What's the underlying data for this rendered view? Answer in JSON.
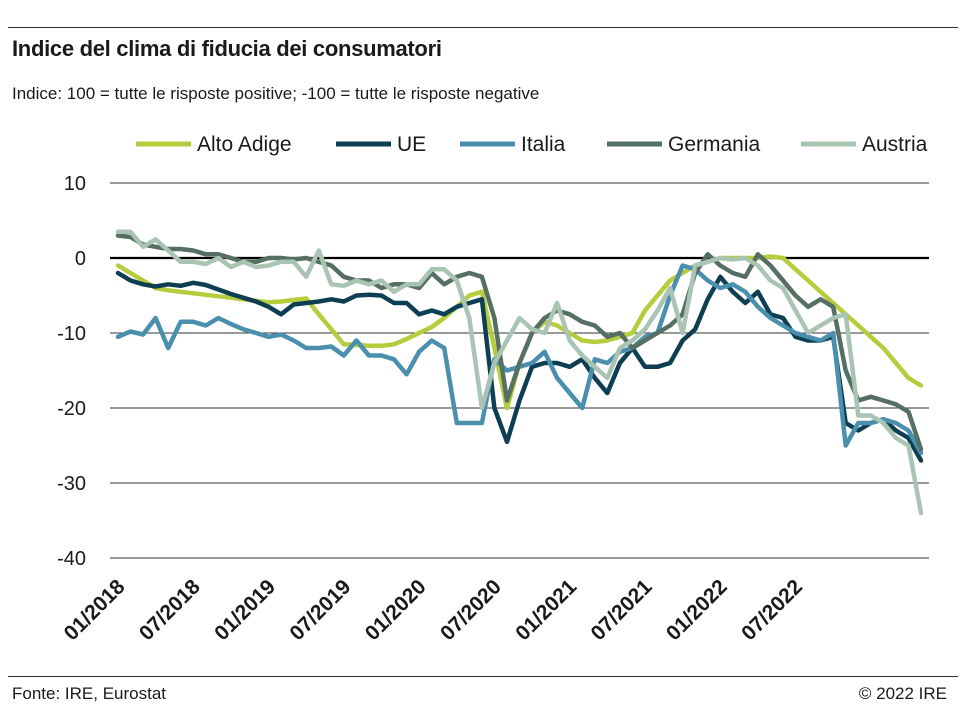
{
  "header": {
    "title": "Indice del clima di fiducia dei consumatori",
    "subtitle": "Indice: 100 = tutte le risposte positive; -100 =  tutte le risposte negative"
  },
  "footer": {
    "source": "Fonte: IRE, Eurostat",
    "copyright": "© 2022 IRE"
  },
  "chart_data": {
    "type": "line",
    "title": "Indice del clima di fiducia dei consumatori",
    "xlabel": "",
    "ylabel": "",
    "ylim": [
      -40,
      10
    ],
    "yticks": [
      10,
      0,
      -10,
      -20,
      -30,
      -40
    ],
    "grid": true,
    "legend": "top",
    "x_start": "01/2018",
    "x_tick_labels": [
      "01/2018",
      "07/2018",
      "01/2019",
      "07/2019",
      "01/2020",
      "07/2020",
      "01/2021",
      "07/2021",
      "01/2022",
      "07/2022"
    ],
    "series": [
      {
        "name": "Alto Adige",
        "color": "#b5cd3c",
        "values": [
          -1,
          -2,
          -3,
          -4,
          -4.3,
          -4.5,
          -4.7,
          -4.9,
          -5.1,
          -5.3,
          -5.5,
          -5.7,
          -5.9,
          -5.8,
          -5.6,
          -5.4,
          -7.5,
          -9.5,
          -11.5,
          -11.6,
          -11.7,
          -11.7,
          -11.5,
          -10.8,
          -10,
          -9.2,
          -8,
          -6.5,
          -5,
          -4.5,
          -12,
          -20,
          -14,
          -10,
          -8.5,
          -9,
          -10,
          -11,
          -11.2,
          -11,
          -10.5,
          -10,
          -7,
          -5,
          -3,
          -2,
          -1,
          -0.5,
          0,
          0,
          0,
          0,
          0.2,
          0,
          -1.5,
          -3,
          -4.5,
          -6,
          -7.5,
          -9,
          -10.5,
          -12,
          -14,
          -16,
          -17
        ]
      },
      {
        "name": "UE",
        "color": "#0e3e52",
        "values": [
          -2,
          -3,
          -3.5,
          -3.8,
          -3.5,
          -3.7,
          -3.3,
          -3.6,
          -4.2,
          -4.8,
          -5.3,
          -5.8,
          -6.5,
          -7.5,
          -6.2,
          -6,
          -5.8,
          -5.5,
          -5.8,
          -5,
          -4.9,
          -5,
          -6,
          -6,
          -7.5,
          -7,
          -7.5,
          -6.5,
          -6,
          -5.5,
          -20,
          -24.5,
          -19,
          -14.5,
          -14,
          -14,
          -14.5,
          -13.5,
          -16,
          -18,
          -14,
          -12,
          -14.5,
          -14.5,
          -14,
          -11,
          -9.5,
          -5.5,
          -2.5,
          -4.5,
          -6,
          -4.5,
          -7.5,
          -8,
          -10.5,
          -11,
          -11,
          -10.5,
          -22,
          -23,
          -22,
          -21.5,
          -23,
          -24,
          -27
        ]
      },
      {
        "name": "Italia",
        "color": "#4a8fae",
        "values": [
          -10.5,
          -9.8,
          -10.2,
          -8,
          -12,
          -8.5,
          -8.5,
          -9,
          -8,
          -8.8,
          -9.5,
          -10,
          -10.5,
          -10.2,
          -11,
          -12,
          -12,
          -11.8,
          -13,
          -11,
          -13,
          -13,
          -13.5,
          -15.5,
          -12.5,
          -11,
          -12,
          -22,
          -22,
          -22,
          -13.5,
          -15,
          -14.5,
          -14,
          -12.5,
          -16,
          -18,
          -20,
          -13.5,
          -14,
          -12.5,
          -12,
          -10.5,
          -10,
          -5,
          -1,
          -1.5,
          -3,
          -4,
          -3.5,
          -4.5,
          -6.5,
          -8,
          -9,
          -10,
          -10.5,
          -11,
          -10,
          -25,
          -22,
          -22,
          -21.5,
          -22,
          -23,
          -26
        ]
      },
      {
        "name": "Germania",
        "color": "#556f62",
        "values": [
          3,
          2.8,
          1.8,
          1.5,
          1.2,
          1.2,
          1,
          0.5,
          0.5,
          0,
          -0.5,
          -0.5,
          0,
          0,
          -0.2,
          0,
          -0.5,
          -1,
          -2.5,
          -3,
          -3,
          -4,
          -3.5,
          -3.5,
          -4,
          -2,
          -3.5,
          -2.5,
          -2,
          -2.5,
          -8,
          -19,
          -14,
          -10,
          -8,
          -7,
          -7.5,
          -8.5,
          -9,
          -10.5,
          -10,
          -12,
          -11,
          -10,
          -9,
          -7.5,
          -2,
          0.5,
          -1,
          -2,
          -2.5,
          0.5,
          -1,
          -3,
          -5,
          -6.5,
          -5.5,
          -6.5,
          -15,
          -19,
          -18.5,
          -19,
          -19.5,
          -20.5,
          -25.5
        ]
      },
      {
        "name": "Austria",
        "color": "#a9c4b2",
        "values": [
          3.5,
          3.5,
          1.5,
          2.5,
          1,
          -0.5,
          -0.5,
          -0.8,
          0,
          -1.2,
          -0.5,
          -1.2,
          -1,
          -0.5,
          -0.5,
          -2.5,
          1,
          -3.5,
          -3.7,
          -3,
          -3.5,
          -3,
          -4.5,
          -3.5,
          -3.5,
          -1.5,
          -1.5,
          -3,
          -8,
          -20,
          -14,
          -11,
          -8,
          -9.5,
          -10,
          -6,
          -11,
          -13,
          -14.5,
          -16,
          -12,
          -11,
          -9.5,
          -7,
          -4,
          -10,
          -1,
          -0.5,
          0,
          -0.2,
          0,
          -1,
          -3,
          -4,
          -7,
          -10,
          -9,
          -8,
          -7.5,
          -21,
          -21,
          -22,
          -24,
          -25,
          -34
        ]
      }
    ]
  }
}
